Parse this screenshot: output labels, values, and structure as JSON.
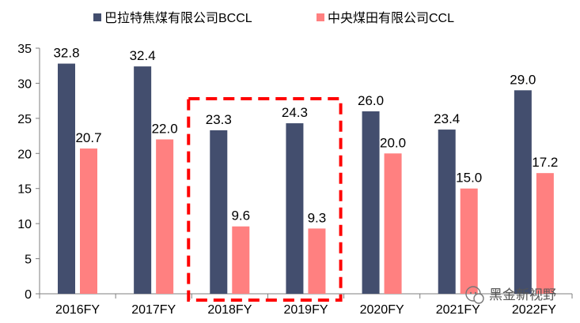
{
  "chart_data": {
    "type": "bar",
    "categories": [
      "2016FY",
      "2017FY",
      "2018FY",
      "2019FY",
      "2020FY",
      "2021FY",
      "2022FY"
    ],
    "series": [
      {
        "name": "巴拉特焦煤有限公司BCCL",
        "color": "#434e6e",
        "values": [
          32.8,
          32.4,
          23.3,
          24.3,
          26.0,
          23.4,
          29.0
        ]
      },
      {
        "name": "中央煤田有限公司CCL",
        "color": "#ff8080",
        "values": [
          20.7,
          22.0,
          9.6,
          9.3,
          20.0,
          15.0,
          17.2
        ]
      }
    ],
    "ylim": [
      0,
      35
    ],
    "yticks": [
      0,
      5,
      10,
      15,
      20,
      25,
      30,
      35
    ],
    "data_label_decimals": 1,
    "legend_position": "top",
    "highlight": {
      "categories": [
        "2018FY",
        "2019FY"
      ],
      "style": "dashed box",
      "color": "#ff0000"
    }
  },
  "watermark": {
    "text": "黑金新视野",
    "icon": "wechat-icon"
  }
}
